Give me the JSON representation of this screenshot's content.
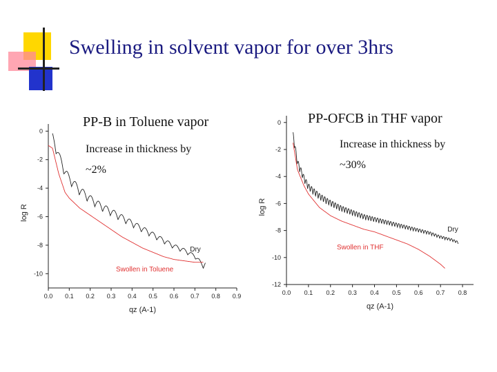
{
  "slide": {
    "title": "Swelling in solvent vapor for over 3hrs"
  },
  "colors": {
    "title": "#1a1a80",
    "dry": "#222222",
    "swollen": "#e03030",
    "deco_yellow": "#ffd700",
    "deco_blue": "#2233cc",
    "deco_pink": "#ff8899"
  },
  "chart_data": [
    {
      "type": "line",
      "title": "PP-B in Toluene vapor",
      "note_line1": "Increase in thickness by",
      "note_line2": "~2%",
      "xlabel": "qz (A-1)",
      "ylabel": "log R",
      "xlim": [
        0.0,
        0.9
      ],
      "ylim": [
        -11,
        0.5
      ],
      "xticks": [
        "0.0",
        "0.1",
        "0.2",
        "0.3",
        "0.4",
        "0.5",
        "0.6",
        "0.7",
        "0.8",
        "0.9"
      ],
      "yticks": [
        "0",
        "-2",
        "-4",
        "-6",
        "-8",
        "-10"
      ],
      "series": [
        {
          "name": "Dry",
          "color": "#222222",
          "oscillation": 0.7,
          "period": 0.037,
          "x": [
            0.02,
            0.05,
            0.08,
            0.1,
            0.15,
            0.2,
            0.25,
            0.3,
            0.35,
            0.4,
            0.45,
            0.5,
            0.55,
            0.6,
            0.65,
            0.7,
            0.72,
            0.74,
            0.75
          ],
          "y": [
            -0.5,
            -1.8,
            -2.9,
            -3.4,
            -4.2,
            -4.8,
            -5.3,
            -5.7,
            -6.1,
            -6.5,
            -6.9,
            -7.3,
            -7.7,
            -8.1,
            -8.4,
            -8.8,
            -9.1,
            -9.5,
            -9.3
          ]
        },
        {
          "name": "Swollen in Toluene",
          "color": "#e03030",
          "x": [
            0.0,
            0.02,
            0.05,
            0.08,
            0.1,
            0.15,
            0.2,
            0.25,
            0.3,
            0.35,
            0.4,
            0.45,
            0.5,
            0.55,
            0.6,
            0.65,
            0.7,
            0.74
          ],
          "y": [
            -1.0,
            -1.2,
            -3.0,
            -4.3,
            -4.7,
            -5.4,
            -5.9,
            -6.4,
            -6.9,
            -7.4,
            -7.8,
            -8.2,
            -8.5,
            -8.8,
            -9.0,
            -9.1,
            -9.2,
            -9.2
          ]
        }
      ]
    },
    {
      "type": "line",
      "title": "PP-OFCB in THF vapor",
      "note_line1": "Increase in thickness by",
      "note_line2": "~30%",
      "xlabel": "qz (A-1)",
      "ylabel": "log R",
      "xlim": [
        0.0,
        0.85
      ],
      "ylim": [
        -12,
        0.5
      ],
      "xticks": [
        "0.0",
        "0.1",
        "0.2",
        "0.3",
        "0.4",
        "0.5",
        "0.6",
        "0.7",
        "0.8"
      ],
      "yticks": [
        "0",
        "-2",
        "-4",
        "-6",
        "-8",
        "-10",
        "-12"
      ],
      "series": [
        {
          "name": "Dry",
          "color": "#222222",
          "oscillation": 0.55,
          "period": 0.012,
          "x": [
            0.03,
            0.05,
            0.08,
            0.1,
            0.15,
            0.2,
            0.25,
            0.3,
            0.35,
            0.4,
            0.45,
            0.5,
            0.55,
            0.6,
            0.65,
            0.7,
            0.75,
            0.78
          ],
          "y": [
            -1.0,
            -3.0,
            -4.2,
            -4.8,
            -5.5,
            -6.0,
            -6.4,
            -6.7,
            -7.0,
            -7.2,
            -7.4,
            -7.6,
            -7.8,
            -8.0,
            -8.2,
            -8.5,
            -8.7,
            -8.9
          ]
        },
        {
          "name": "Swollen in THF",
          "color": "#e03030",
          "x": [
            0.03,
            0.05,
            0.08,
            0.1,
            0.15,
            0.2,
            0.25,
            0.3,
            0.35,
            0.4,
            0.45,
            0.5,
            0.55,
            0.6,
            0.65,
            0.7,
            0.72
          ],
          "y": [
            -1.5,
            -3.5,
            -4.7,
            -5.3,
            -6.3,
            -6.9,
            -7.3,
            -7.6,
            -7.9,
            -8.1,
            -8.4,
            -8.7,
            -9.0,
            -9.4,
            -9.9,
            -10.5,
            -10.8
          ]
        }
      ]
    }
  ]
}
